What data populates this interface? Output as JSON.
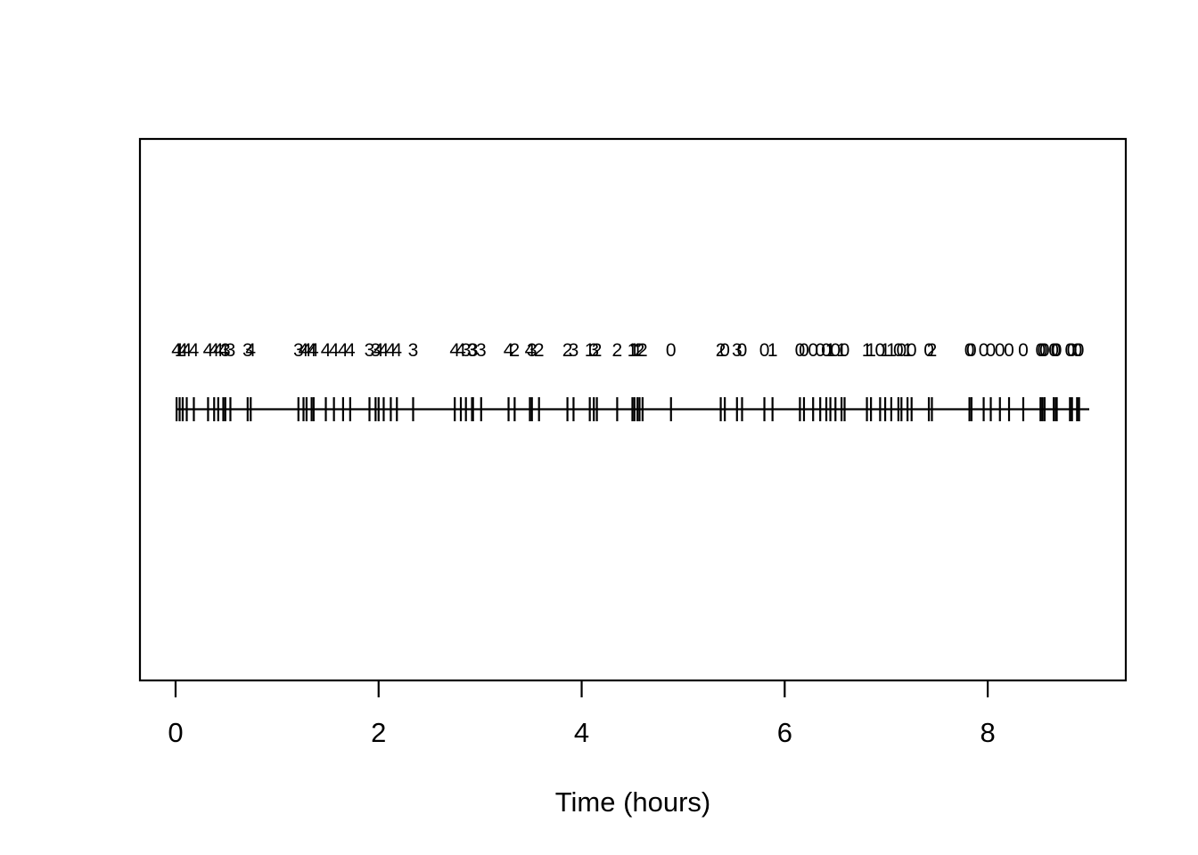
{
  "chart_data": {
    "type": "scatter",
    "subtype": "rug-event-timeline",
    "title": "",
    "xlabel": "Time (hours)",
    "ylabel": "",
    "x_ticks": [
      0,
      2,
      4,
      6,
      8
    ],
    "xlim": [
      -0.351,
      9.36
    ],
    "grid": false,
    "legend_position": "none",
    "rug_extent": [
      0.01,
      9.0
    ],
    "description": "Horizontal timeline with a short vertical dash at each event time; a small count digit (0-4) is printed above each event, heavily overlapping where events cluster.",
    "events": [
      [
        0.01,
        4
      ],
      [
        0.04,
        1
      ],
      [
        0.07,
        4
      ],
      [
        0.11,
        4
      ],
      [
        0.18,
        4
      ],
      [
        0.32,
        4
      ],
      [
        0.38,
        4
      ],
      [
        0.42,
        4
      ],
      [
        0.47,
        4
      ],
      [
        0.49,
        3
      ],
      [
        0.54,
        3
      ],
      [
        0.71,
        3
      ],
      [
        0.74,
        4
      ],
      [
        1.21,
        3
      ],
      [
        1.26,
        4
      ],
      [
        1.29,
        4
      ],
      [
        1.34,
        4
      ],
      [
        1.36,
        4
      ],
      [
        1.48,
        4
      ],
      [
        1.56,
        4
      ],
      [
        1.65,
        4
      ],
      [
        1.72,
        4
      ],
      [
        1.91,
        3
      ],
      [
        1.97,
        3
      ],
      [
        2.0,
        4
      ],
      [
        2.05,
        4
      ],
      [
        2.12,
        4
      ],
      [
        2.18,
        4
      ],
      [
        2.34,
        3
      ],
      [
        2.75,
        4
      ],
      [
        2.81,
        4
      ],
      [
        2.86,
        3
      ],
      [
        2.92,
        3
      ],
      [
        2.93,
        3
      ],
      [
        3.01,
        3
      ],
      [
        3.28,
        4
      ],
      [
        3.34,
        2
      ],
      [
        3.49,
        4
      ],
      [
        3.51,
        3
      ],
      [
        3.58,
        2
      ],
      [
        3.86,
        2
      ],
      [
        3.92,
        3
      ],
      [
        4.08,
        1
      ],
      [
        4.12,
        3
      ],
      [
        4.15,
        2
      ],
      [
        4.35,
        2
      ],
      [
        4.5,
        1
      ],
      [
        4.52,
        1
      ],
      [
        4.55,
        1
      ],
      [
        4.57,
        2
      ],
      [
        4.6,
        2
      ],
      [
        4.88,
        0
      ],
      [
        5.37,
        2
      ],
      [
        5.41,
        0
      ],
      [
        5.53,
        3
      ],
      [
        5.58,
        0
      ],
      [
        5.8,
        0
      ],
      [
        5.88,
        1
      ],
      [
        6.15,
        0
      ],
      [
        6.19,
        0
      ],
      [
        6.28,
        0
      ],
      [
        6.35,
        0
      ],
      [
        6.41,
        0
      ],
      [
        6.45,
        1
      ],
      [
        6.5,
        0
      ],
      [
        6.56,
        1
      ],
      [
        6.59,
        0
      ],
      [
        6.81,
        1
      ],
      [
        6.85,
        1
      ],
      [
        6.94,
        0
      ],
      [
        6.99,
        1
      ],
      [
        7.05,
        1
      ],
      [
        7.12,
        0
      ],
      [
        7.15,
        0
      ],
      [
        7.21,
        1
      ],
      [
        7.25,
        0
      ],
      [
        7.42,
        0
      ],
      [
        7.45,
        2
      ],
      [
        7.82,
        0
      ],
      [
        7.84,
        0
      ],
      [
        7.96,
        0
      ],
      [
        8.03,
        0
      ],
      [
        8.12,
        0
      ],
      [
        8.21,
        0
      ],
      [
        8.35,
        0
      ],
      [
        8.52,
        0
      ],
      [
        8.54,
        0
      ],
      [
        8.56,
        0
      ],
      [
        8.65,
        0
      ],
      [
        8.67,
        0
      ],
      [
        8.68,
        0
      ],
      [
        8.81,
        0
      ],
      [
        8.83,
        0
      ],
      [
        8.88,
        0
      ],
      [
        8.9,
        0
      ]
    ]
  },
  "colors": {
    "foreground": "#000000",
    "background": "#ffffff"
  }
}
